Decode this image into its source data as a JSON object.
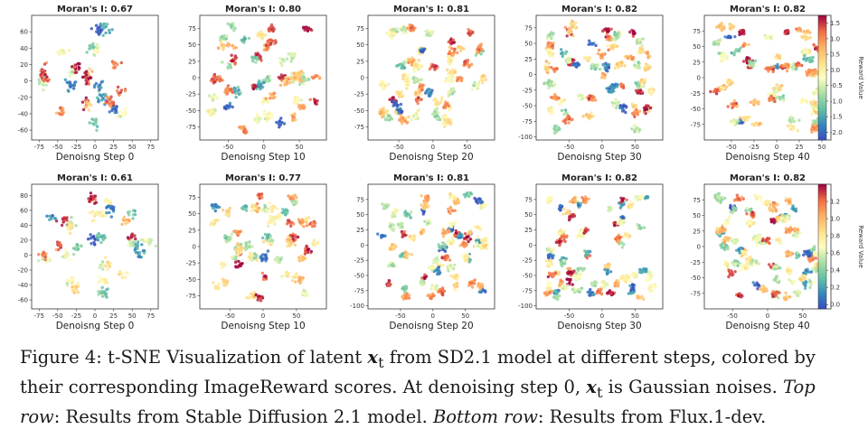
{
  "chart_data": {
    "type": "scatter",
    "colormap": "Spectral",
    "rows": [
      {
        "colorbar": {
          "label": "Reward Value",
          "min": -2.25,
          "max": 1.75,
          "ticks": [
            "1.5",
            "1.0",
            "0.5",
            "0.0",
            "-0.5",
            "-1.0",
            "-1.5",
            "-2.0"
          ],
          "tick_values": [
            1.5,
            1.0,
            0.5,
            0.0,
            -0.5,
            -1.0,
            -1.5,
            -2.0
          ]
        },
        "panels": [
          {
            "title": "Moran's I: 0.67",
            "xlabel": "Denoisng Step 0",
            "xlim": [
              -85,
              85
            ],
            "ylim": [
              -72,
              80
            ],
            "xticks": [
              -75,
              -50,
              -25,
              0,
              25,
              50,
              75
            ],
            "yticks": [
              60,
              40,
              20,
              0,
              -20,
              -40,
              -60
            ],
            "clusters": 24,
            "spread": 3.5,
            "seed": 11
          },
          {
            "title": "Moran's I: 0.80",
            "xlabel": "Denoisng Step 10",
            "xlim": [
              -90,
              88
            ],
            "ylim": [
              -95,
              95
            ],
            "xticks": [
              -50,
              0,
              50
            ],
            "yticks": [
              75,
              50,
              25,
              0,
              -25,
              -50,
              -75
            ],
            "clusters": 46,
            "spread": 3,
            "seed": 23
          },
          {
            "title": "Moran's I: 0.81",
            "xlabel": "Denoisng Step 20",
            "xlim": [
              -95,
              90
            ],
            "ylim": [
              -95,
              95
            ],
            "xticks": [
              -50,
              0,
              50
            ],
            "yticks": [
              75,
              50,
              25,
              0,
              -25,
              -50,
              -75
            ],
            "clusters": 55,
            "spread": 2.8,
            "seed": 37
          },
          {
            "title": "Moran's I: 0.82",
            "xlabel": "Denoisng Step 30",
            "xlim": [
              -100,
              92
            ],
            "ylim": [
              -105,
              95
            ],
            "xticks": [
              -50,
              0,
              50
            ],
            "yticks": [
              75,
              50,
              25,
              0,
              -25,
              -50,
              -75,
              -100
            ],
            "clusters": 60,
            "spread": 2.8,
            "seed": 41
          },
          {
            "title": "Moran's I: 0.82",
            "xlabel": "Denoisng Step 40",
            "xlim": [
              -80,
              60
            ],
            "ylim": [
              -100,
              100
            ],
            "xticks": [
              -50,
              -25,
              0,
              25,
              50
            ],
            "yticks": [
              75,
              50,
              25,
              0,
              -25,
              -50,
              -75
            ],
            "clusters": 58,
            "spread": 2.4,
            "seed": 53
          }
        ]
      },
      {
        "colorbar": {
          "label": "Reward Value",
          "min": -0.05,
          "max": 1.4,
          "ticks": [
            "1.2",
            "1.0",
            "0.8",
            "0.6",
            "0.4",
            "0.2",
            "0.0"
          ],
          "tick_values": [
            1.2,
            1.0,
            0.8,
            0.6,
            0.4,
            0.2,
            0.0
          ]
        },
        "panels": [
          {
            "title": "Moran's I: 0.61",
            "xlabel": "Denoisng Step 0",
            "xlim": [
              -85,
              85
            ],
            "ylim": [
              -72,
              95
            ],
            "xticks": [
              -75,
              -50,
              -25,
              0,
              25,
              50,
              75
            ],
            "yticks": [
              80,
              60,
              40,
              20,
              0,
              -20,
              -40,
              -60
            ],
            "clusters": 30,
            "spread": 3.2,
            "seed": 67
          },
          {
            "title": "Moran's I: 0.77",
            "xlabel": "Denoisng Step 10",
            "xlim": [
              -95,
              95
            ],
            "ylim": [
              -95,
              95
            ],
            "xticks": [
              -50,
              0,
              50
            ],
            "yticks": [
              75,
              50,
              25,
              0,
              -25,
              -50,
              -75
            ],
            "clusters": 52,
            "spread": 2.8,
            "seed": 79
          },
          {
            "title": "Moran's I: 0.81",
            "xlabel": "Denoisng Step 20",
            "xlim": [
              -100,
              95
            ],
            "ylim": [
              -105,
              100
            ],
            "xticks": [
              -50,
              0,
              50
            ],
            "yticks": [
              75,
              50,
              25,
              0,
              -25,
              -50,
              -75,
              -100
            ],
            "clusters": 62,
            "spread": 2.6,
            "seed": 83
          },
          {
            "title": "Moran's I: 0.82",
            "xlabel": "Denoisng Step 30",
            "xlim": [
              -100,
              92
            ],
            "ylim": [
              -105,
              100
            ],
            "xticks": [
              -50,
              0,
              50
            ],
            "yticks": [
              75,
              50,
              25,
              0,
              -25,
              -50,
              -75,
              -100
            ],
            "clusters": 68,
            "spread": 2.5,
            "seed": 97
          },
          {
            "title": "Moran's I: 0.82",
            "xlabel": "Denoisng Step 40",
            "xlim": [
              -90,
              90
            ],
            "ylim": [
              -100,
              100
            ],
            "xticks": [
              -50,
              0,
              50
            ],
            "yticks": [
              75,
              50,
              25,
              0,
              -25,
              -50,
              -75
            ],
            "clusters": 70,
            "spread": 2.4,
            "seed": 101
          }
        ]
      }
    ]
  },
  "caption": {
    "lead": "Figure 4: t-SNE Visualization of latent ",
    "var1": "x",
    "sub1": "t",
    "mid1": " from SD2.1 model at different steps, colored by their corresponding ImageReward scores. At denoising step 0, ",
    "var2": "x",
    "sub2": "t",
    "mid2": " is Gaussian noises. ",
    "top_label": "Top row",
    "top_text": ": Results from Stable Diffusion 2.1 model. ",
    "bottom_label": "Bottom row",
    "bottom_text": ": Results from Flux.1-dev."
  }
}
